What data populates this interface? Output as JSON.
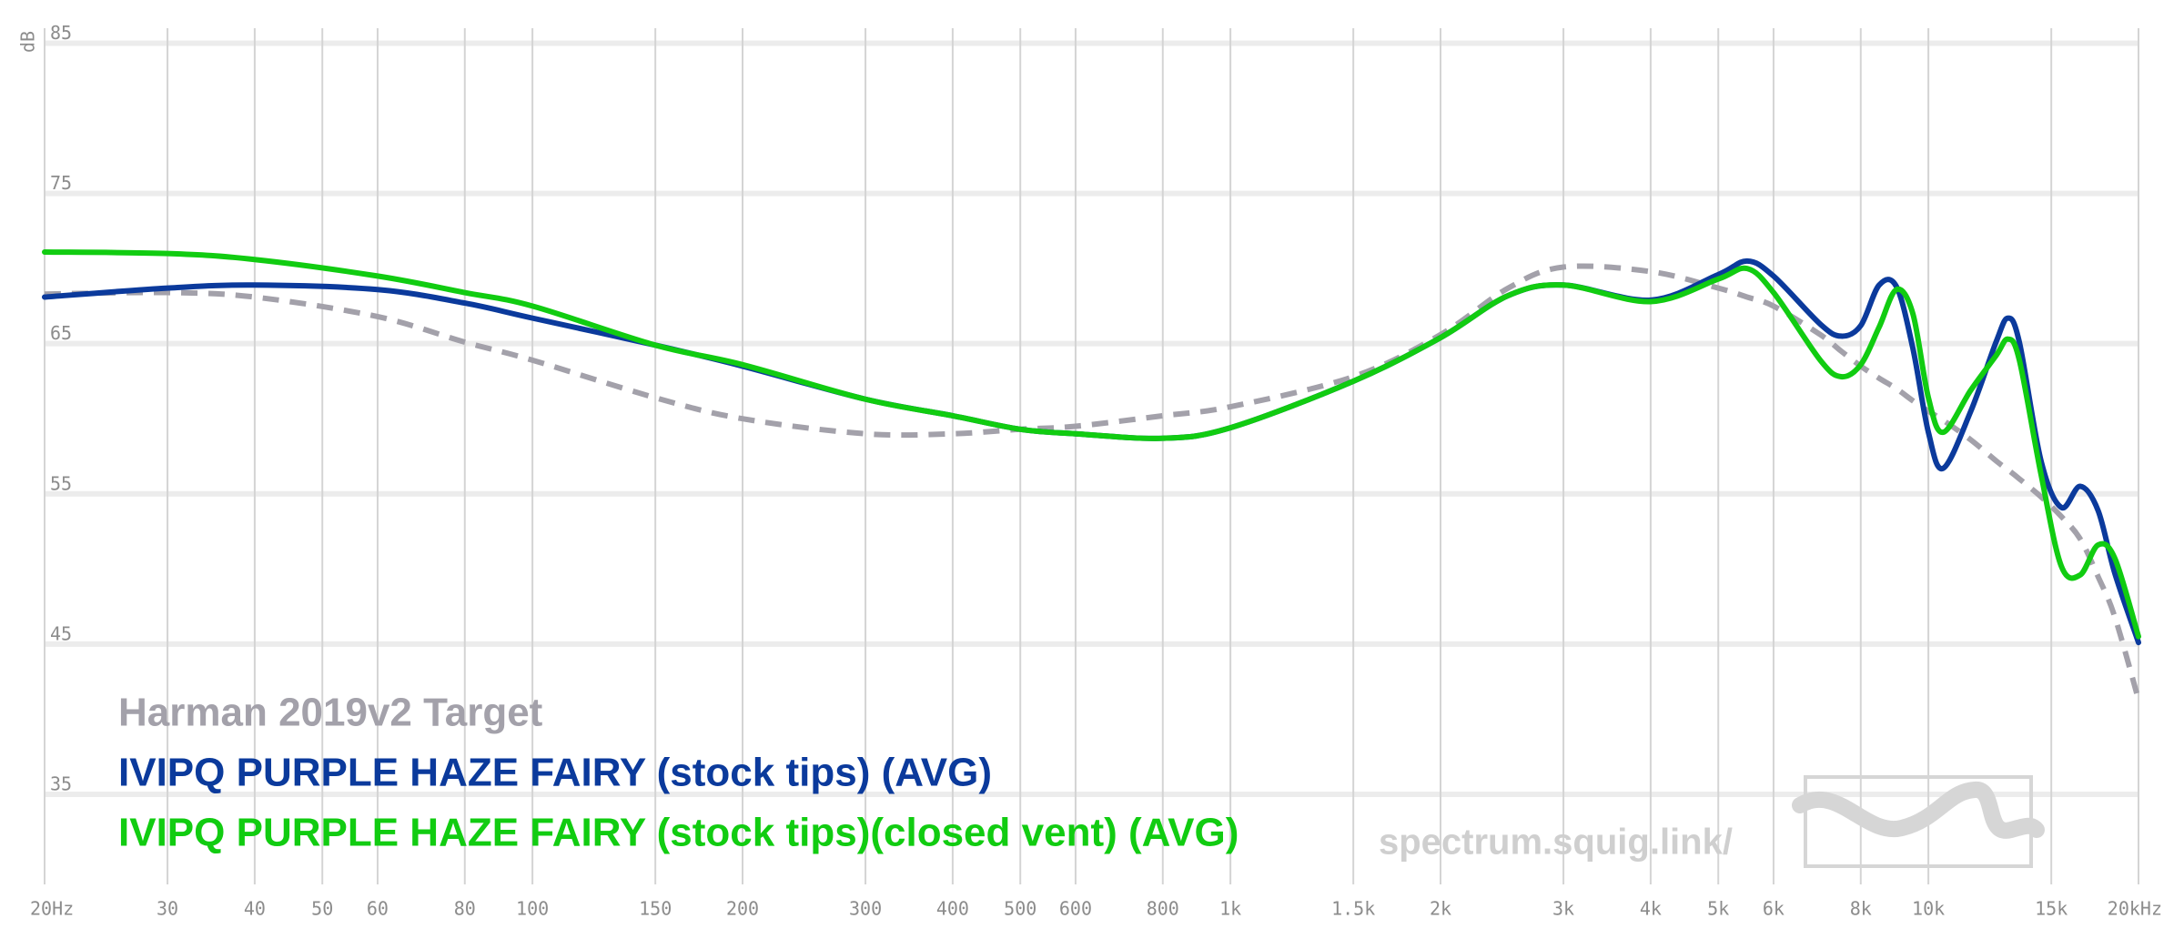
{
  "chart_data": {
    "type": "line",
    "x_scale": "log",
    "y_label": "dB",
    "watermark": "spectrum.squig.link/",
    "xlim": [
      20,
      20000
    ],
    "ylim": [
      29,
      86
    ],
    "yticks": [
      35,
      45,
      55,
      65,
      75,
      85
    ],
    "xticks": [
      {
        "value": 20,
        "label": "20Hz"
      },
      30,
      40,
      50,
      60,
      80,
      100,
      150,
      200,
      300,
      400,
      500,
      600,
      800,
      {
        "value": 1000,
        "label": "1k"
      },
      {
        "value": 1500,
        "label": "1.5k"
      },
      {
        "value": 2000,
        "label": "2k"
      },
      {
        "value": 3000,
        "label": "3k"
      },
      {
        "value": 4000,
        "label": "4k"
      },
      {
        "value": 5000,
        "label": "5k"
      },
      {
        "value": 6000,
        "label": "6k"
      },
      {
        "value": 8000,
        "label": "8k"
      },
      {
        "value": 10000,
        "label": "10k"
      },
      {
        "value": 15000,
        "label": "15k"
      },
      {
        "value": 20000,
        "label": "20kHz"
      }
    ],
    "grid": true,
    "x": [
      20,
      30,
      40,
      60,
      80,
      100,
      150,
      200,
      300,
      400,
      500,
      600,
      800,
      1000,
      1500,
      2000,
      2500,
      3000,
      4000,
      5000,
      5500,
      6000,
      7000,
      7500,
      8000,
      8500,
      9000,
      9500,
      10000,
      10500,
      11500,
      12500,
      13000,
      13500,
      14500,
      15500,
      16500,
      17500,
      18500,
      20000
    ],
    "series": [
      {
        "name": "Harman 2019v2 Target",
        "color": "#a3a1aa",
        "dashed": true,
        "values": [
          68.3,
          68.4,
          68.1,
          66.8,
          65.1,
          63.9,
          61.4,
          60.0,
          59.0,
          59.0,
          59.3,
          59.5,
          60.2,
          60.8,
          62.8,
          65.6,
          68.7,
          70.1,
          69.8,
          68.7,
          68.1,
          67.5,
          65.6,
          64.5,
          63.5,
          62.7,
          62.0,
          61.2,
          60.5,
          59.9,
          58.6,
          57.2,
          56.6,
          56.0,
          54.8,
          53.5,
          52.0,
          49.5,
          46.8,
          41.3
        ]
      },
      {
        "name": "IVIPQ PURPLE HAZE FAIRY (stock tips) (AVG)",
        "color": "#0b3a9c",
        "dashed": false,
        "values": [
          68.1,
          68.7,
          68.9,
          68.6,
          67.7,
          66.7,
          64.9,
          63.5,
          61.3,
          60.2,
          59.3,
          59.0,
          58.7,
          59.4,
          62.5,
          65.4,
          68.2,
          68.9,
          67.9,
          69.6,
          70.5,
          69.5,
          66.3,
          65.5,
          66.2,
          68.9,
          68.8,
          64.7,
          59.1,
          56.7,
          60.5,
          65.1,
          66.7,
          65.1,
          57.2,
          54.1,
          55.5,
          53.9,
          49.7,
          45.1
        ]
      },
      {
        "name": "IVIPQ PURPLE HAZE FAIRY (stock tips)(closed vent) (AVG)",
        "color": "#11cc11",
        "dashed": false,
        "values": [
          71.1,
          71.0,
          70.6,
          69.5,
          68.4,
          67.5,
          64.9,
          63.6,
          61.3,
          60.2,
          59.3,
          59.0,
          58.7,
          59.4,
          62.5,
          65.4,
          68.2,
          68.9,
          67.8,
          69.3,
          70.0,
          68.4,
          63.9,
          62.8,
          63.6,
          66.1,
          68.6,
          67.0,
          61.4,
          59.1,
          61.9,
          64.2,
          65.3,
          63.9,
          56.3,
          50.2,
          49.6,
          51.6,
          50.7,
          45.5
        ]
      }
    ]
  }
}
